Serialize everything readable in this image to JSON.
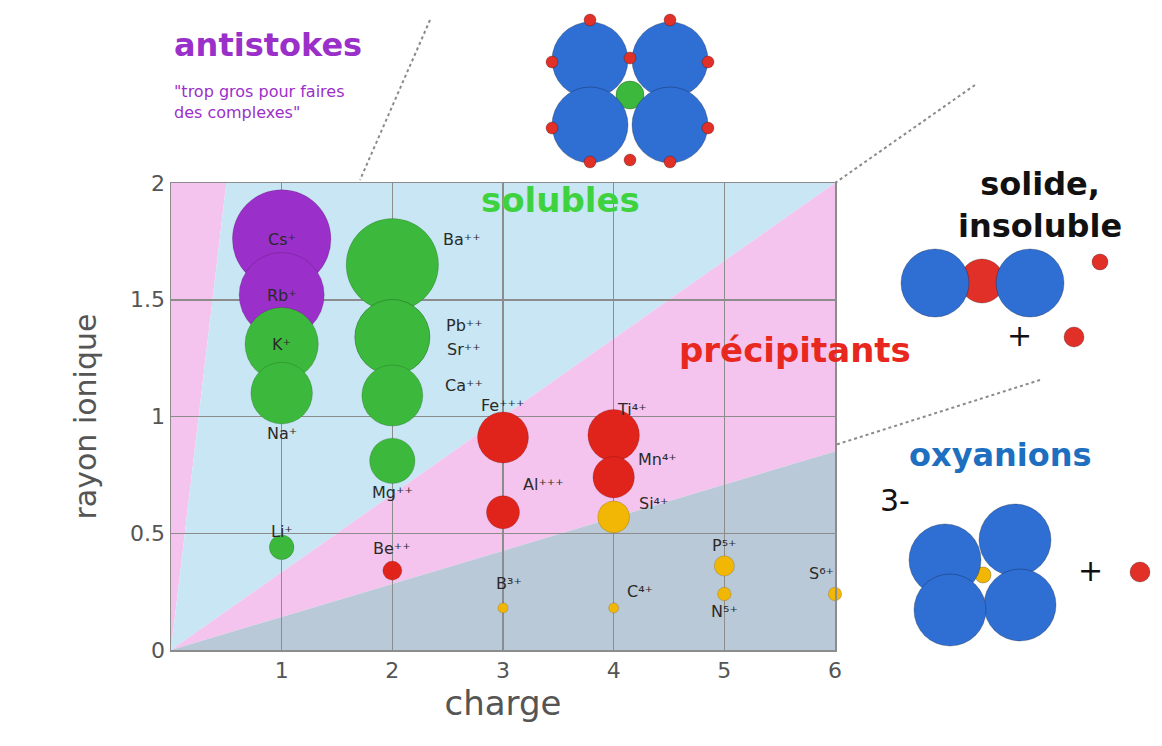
{
  "chart_data": {
    "type": "scatter",
    "x_label": "charge",
    "y_label": "rayon ionique",
    "xlim": [
      0,
      6
    ],
    "ylim": [
      0,
      2
    ],
    "xticks": [
      1,
      2,
      3,
      4,
      5,
      6
    ],
    "yticks": [
      0,
      0.5,
      1,
      1.5,
      2
    ],
    "grid": true,
    "marker": "circle",
    "points": [
      {
        "label": "Cs⁺",
        "x": 1,
        "y": 1.76,
        "color": "#9b2fc9"
      },
      {
        "label": "Rb⁺",
        "x": 1,
        "y": 1.52,
        "color": "#9b2fc9"
      },
      {
        "label": "K⁺",
        "x": 1,
        "y": 1.31,
        "color": "#3cb93c"
      },
      {
        "label": "Na⁺",
        "x": 1,
        "y": 1.1,
        "color": "#3cb93c"
      },
      {
        "label": "Li⁺",
        "x": 1,
        "y": 0.44,
        "color": "#3cb93c"
      },
      {
        "label": "Ba⁺⁺",
        "x": 2,
        "y": 1.65,
        "color": "#3cb93c"
      },
      {
        "label": "Pb⁺⁺",
        "x": 2,
        "y": 1.34,
        "color": "#3cb93c"
      },
      {
        "label": "Sr⁺⁺",
        "x": 2,
        "y": 1.34,
        "color": "#3cb93c"
      },
      {
        "label": "Ca⁺⁺",
        "x": 2,
        "y": 1.09,
        "color": "#3cb93c"
      },
      {
        "label": "Mg⁺⁺",
        "x": 2,
        "y": 0.81,
        "color": "#3cb93c"
      },
      {
        "label": "Be⁺⁺",
        "x": 2,
        "y": 0.34,
        "color": "#e0241c"
      },
      {
        "label": "Fe⁺⁺⁺",
        "x": 3,
        "y": 0.91,
        "color": "#e0241c"
      },
      {
        "label": "Al⁺⁺⁺",
        "x": 3,
        "y": 0.59,
        "color": "#e0241c"
      },
      {
        "label": "Ti⁴⁺",
        "x": 4,
        "y": 0.92,
        "color": "#e0241c"
      },
      {
        "label": "Mn⁴⁺",
        "x": 4,
        "y": 0.74,
        "color": "#e0241c"
      },
      {
        "label": "Si⁴⁺",
        "x": 4,
        "y": 0.57,
        "color": "#f2b705"
      },
      {
        "label": "B³⁺",
        "x": 3,
        "y": 0.18,
        "color": "#f2b705"
      },
      {
        "label": "C⁴⁺",
        "x": 4,
        "y": 0.18,
        "color": "#f2b705"
      },
      {
        "label": "P⁵⁺",
        "x": 5,
        "y": 0.36,
        "color": "#f2b705"
      },
      {
        "label": "N⁵⁺",
        "x": 5,
        "y": 0.24,
        "color": "#f2b705"
      },
      {
        "label": "S⁶⁺",
        "x": 6,
        "y": 0.24,
        "color": "#f2b705"
      }
    ],
    "regions": [
      {
        "label": "antistokes",
        "note": "\"trop gros pour faires des complexes\"",
        "color": "#f4c4ee",
        "text_color": "#9b2fc9",
        "vertices": [
          [
            0,
            0
          ],
          [
            0,
            2
          ],
          [
            0.5,
            2
          ]
        ]
      },
      {
        "label": "solubles",
        "color": "#c8e6f3",
        "text_color": "#3fd23f",
        "vertices": [
          [
            0,
            0
          ],
          [
            0.5,
            2
          ],
          [
            6,
            2
          ]
        ]
      },
      {
        "label": "précipitants",
        "color": "#f4c4ee",
        "text_color": "#e8281e",
        "vertices": [
          [
            0,
            0
          ],
          [
            6,
            2
          ],
          [
            6,
            0.85
          ]
        ],
        "inset": {
          "label": "solide, insoluble",
          "signs": [
            "+"
          ]
        }
      },
      {
        "label": "oxyanions",
        "color": "#b9c9d8",
        "text_color": "#1e6fc0",
        "vertices": [
          [
            0,
            0
          ],
          [
            6,
            0.85
          ],
          [
            6,
            0
          ]
        ],
        "inset": {
          "signs": [
            "3-",
            "+"
          ]
        }
      }
    ]
  }
}
